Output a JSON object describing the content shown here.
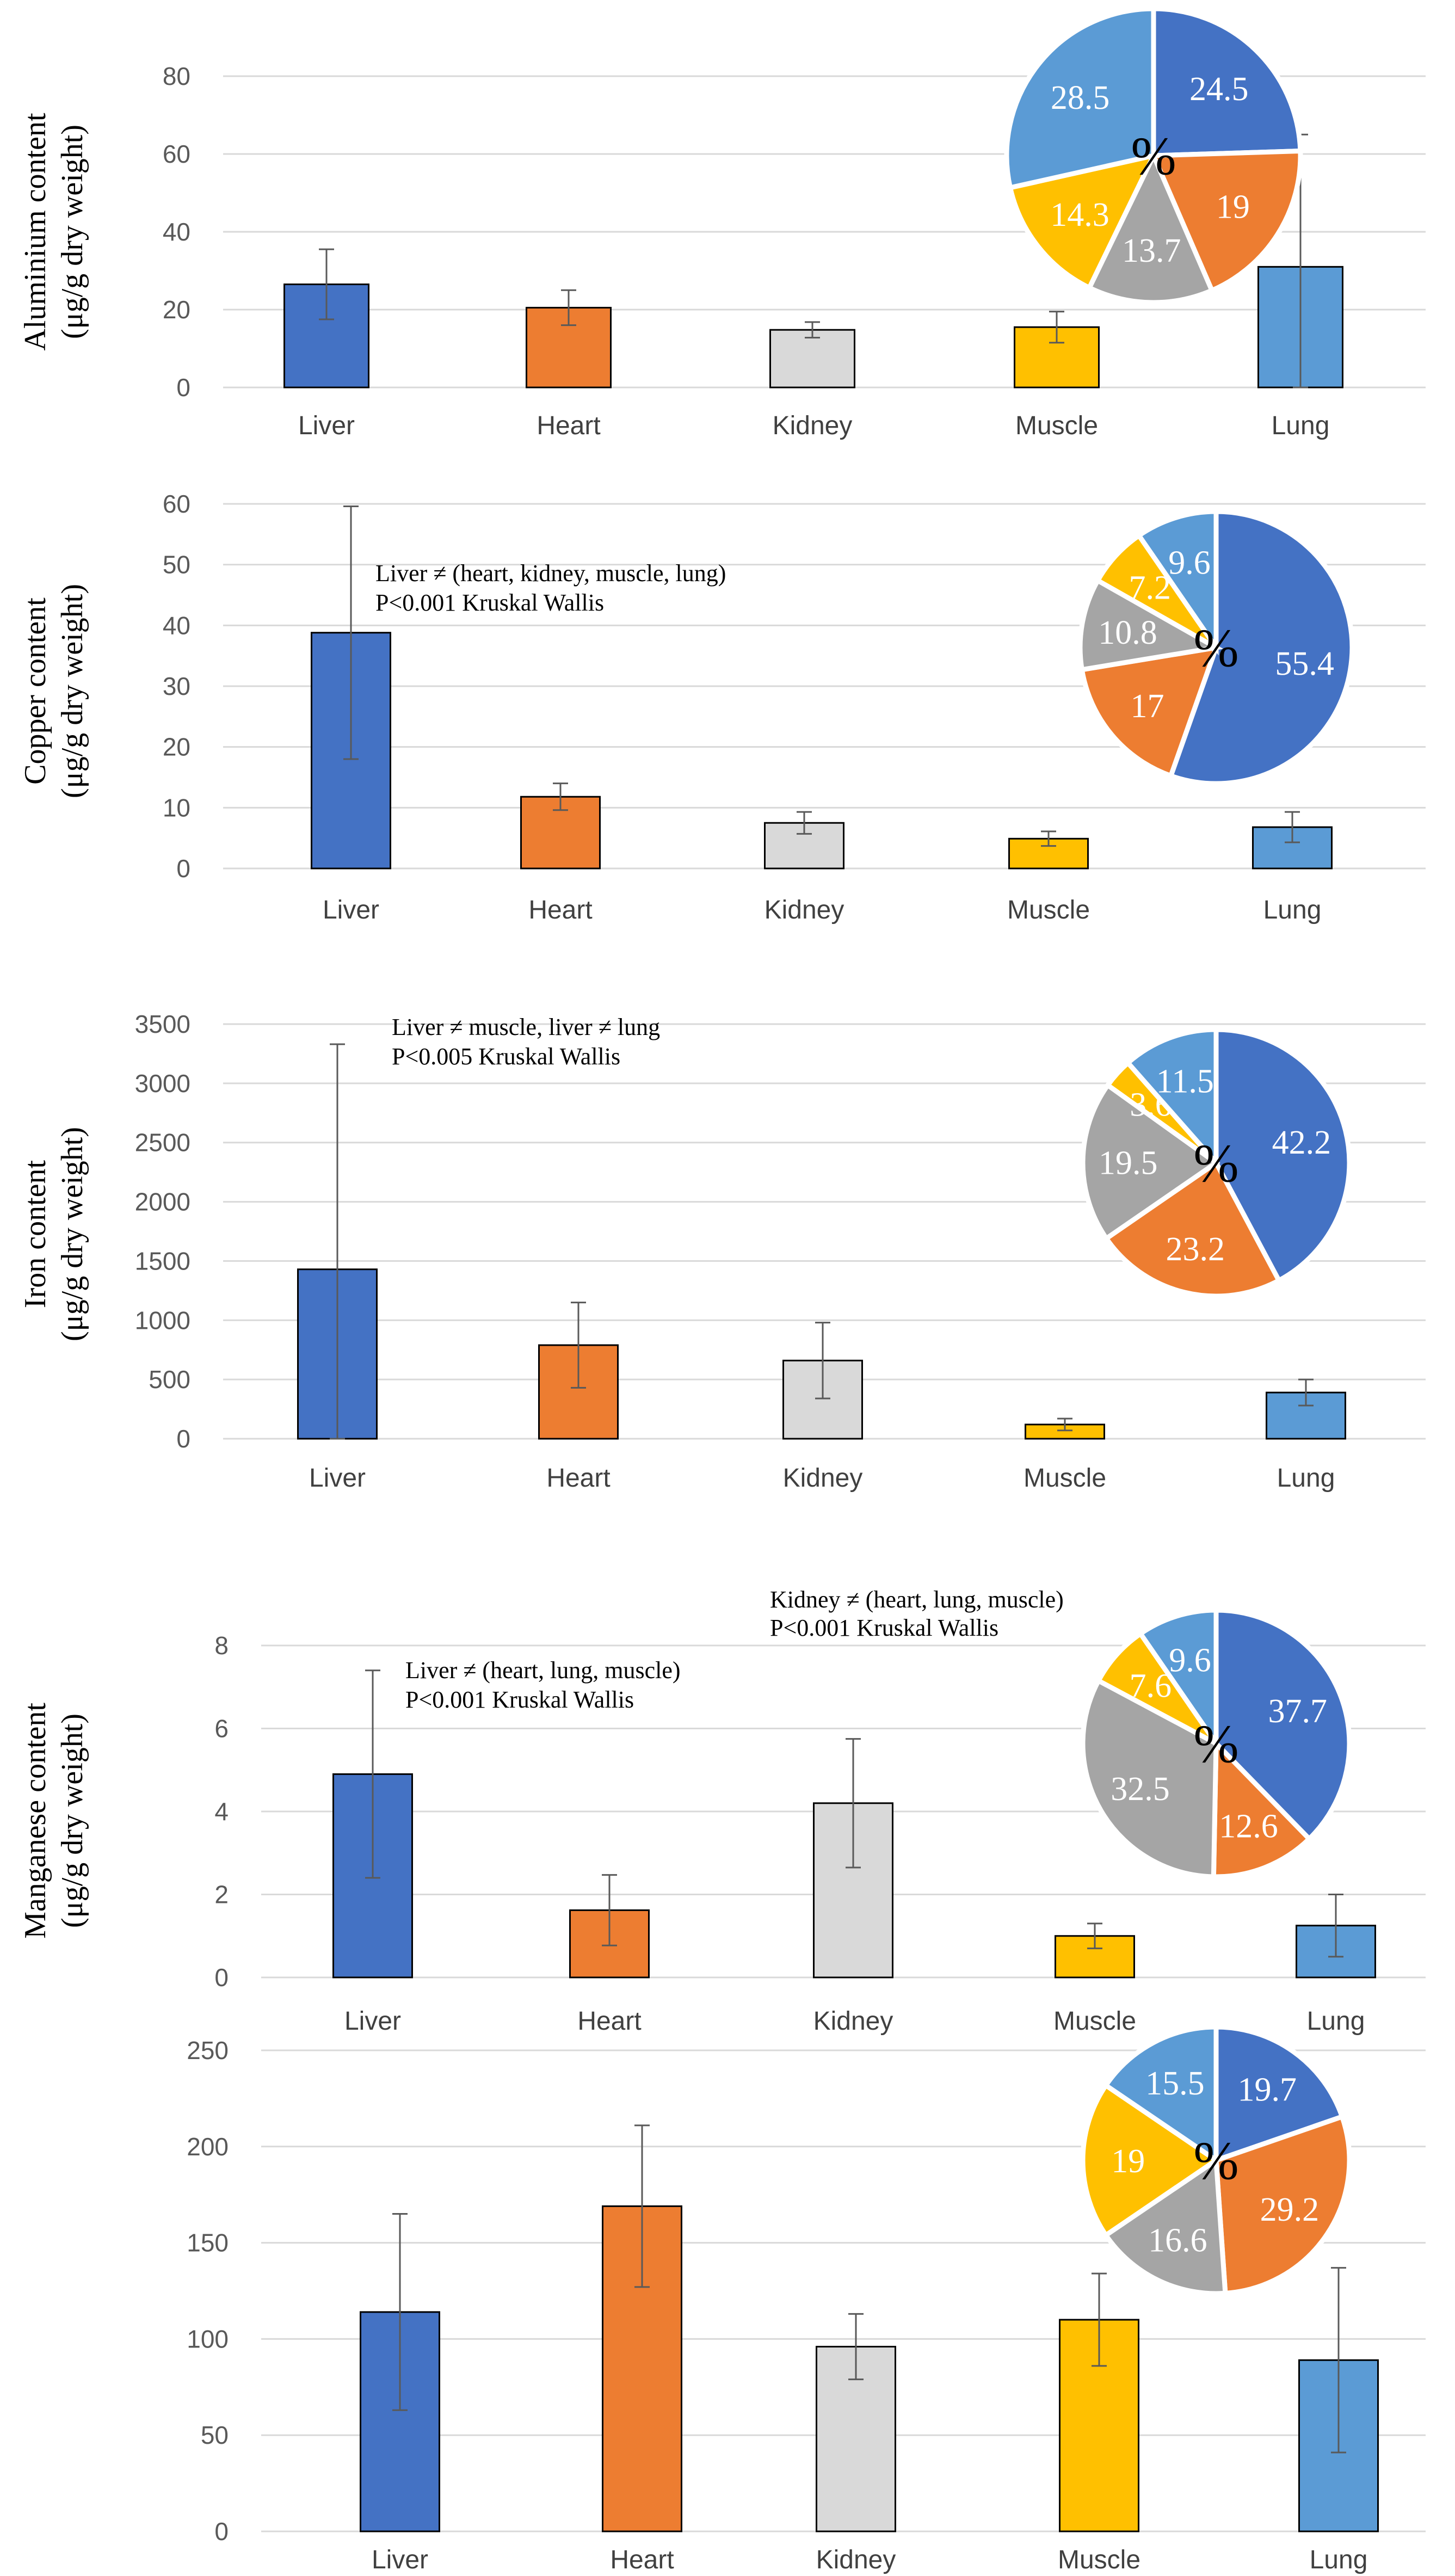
{
  "chart_data": [
    {
      "type": "bar",
      "title": "",
      "xlabel": "",
      "ylabel": [
        "Aluminium content",
        "(μg/g dry weight)"
      ],
      "categories": [
        "Liver",
        "Heart",
        "Kidney",
        "Muscle",
        "Lung"
      ],
      "values": [
        26.5,
        20.5,
        14.8,
        15.5,
        31.0
      ],
      "errors": [
        9.0,
        4.5,
        2.0,
        4.0,
        34.0
      ],
      "ylim": [
        0,
        80
      ],
      "yticks": [
        "0",
        "20",
        "40",
        "60",
        "80"
      ],
      "colors": [
        "#4472C4",
        "#ED7D31",
        "#D9D9D9",
        "#FFC000",
        "#5B9BD5"
      ],
      "annotations": [],
      "pie": {
        "center_label": "%",
        "slices": [
          {
            "label": "Liver",
            "value": 24.5,
            "text": "24.5",
            "color": "#4472C4"
          },
          {
            "label": "Heart",
            "value": 19,
            "text": "19",
            "color": "#ED7D31"
          },
          {
            "label": "Kidney",
            "value": 13.7,
            "text": "13.7",
            "color": "#A5A5A5"
          },
          {
            "label": "Muscle",
            "value": 14.3,
            "text": "14.3",
            "color": "#FFC000"
          },
          {
            "label": "Lung",
            "value": 28.5,
            "text": "28.5",
            "color": "#5B9BD5"
          }
        ]
      }
    },
    {
      "type": "bar",
      "title": "",
      "xlabel": "",
      "ylabel": [
        "Copper content",
        "(μg/g dry weight)"
      ],
      "categories": [
        "Liver",
        "Heart",
        "Kidney",
        "Muscle",
        "Lung"
      ],
      "values": [
        38.8,
        11.8,
        7.5,
        4.9,
        6.8
      ],
      "errors": [
        20.8,
        2.2,
        1.8,
        1.2,
        2.5
      ],
      "ylim": [
        0,
        60
      ],
      "yticks": [
        "0",
        "10",
        "20",
        "30",
        "40",
        "50",
        "60"
      ],
      "colors": [
        "#4472C4",
        "#ED7D31",
        "#D9D9D9",
        "#FFC000",
        "#5B9BD5"
      ],
      "annotations": [
        "Liver ≠ (heart, kidney, muscle, lung)",
        "P<0.001 Kruskal Wallis"
      ],
      "pie": {
        "center_label": "%",
        "slices": [
          {
            "label": "Liver",
            "value": 55.4,
            "text": "55.4",
            "color": "#4472C4"
          },
          {
            "label": "Heart",
            "value": 17,
            "text": "17",
            "color": "#ED7D31"
          },
          {
            "label": "Kidney",
            "value": 10.8,
            "text": "10.8",
            "color": "#A5A5A5"
          },
          {
            "label": "Muscle",
            "value": 7.2,
            "text": "7.2",
            "color": "#FFC000"
          },
          {
            "label": "Lung",
            "value": 9.6,
            "text": "9.6",
            "color": "#5B9BD5"
          }
        ]
      }
    },
    {
      "type": "bar",
      "title": "",
      "xlabel": "",
      "ylabel": [
        "Iron content",
        "(μg/g dry weight)"
      ],
      "categories": [
        "Liver",
        "Heart",
        "Kidney",
        "Muscle",
        "Lung"
      ],
      "values": [
        1430,
        790,
        660,
        120,
        390
      ],
      "errors": [
        1900,
        360,
        320,
        50,
        110
      ],
      "ylim": [
        0,
        3500
      ],
      "yticks": [
        "0",
        "500",
        "1000",
        "1500",
        "2000",
        "2500",
        "3000",
        "3500"
      ],
      "colors": [
        "#4472C4",
        "#ED7D31",
        "#D9D9D9",
        "#FFC000",
        "#5B9BD5"
      ],
      "annotations": [
        "Liver ≠ muscle, liver ≠ lung",
        "P<0.005 Kruskal Wallis"
      ],
      "pie": {
        "center_label": "%",
        "slices": [
          {
            "label": "Liver",
            "value": 42.2,
            "text": "42.2",
            "color": "#4472C4"
          },
          {
            "label": "Heart",
            "value": 23.2,
            "text": "23.2",
            "color": "#ED7D31"
          },
          {
            "label": "Kidney",
            "value": 19.5,
            "text": "19.5",
            "color": "#A5A5A5"
          },
          {
            "label": "Muscle",
            "value": 3.6,
            "text": "3.6",
            "color": "#FFC000"
          },
          {
            "label": "Lung",
            "value": 11.5,
            "text": "11.5",
            "color": "#5B9BD5"
          }
        ]
      }
    },
    {
      "type": "bar",
      "title": "",
      "xlabel": "",
      "ylabel": [
        "Manganese content",
        "(μg/g dry weight)"
      ],
      "categories": [
        "Liver",
        "Heart",
        "Kidney",
        "Muscle",
        "Lung"
      ],
      "values": [
        4.9,
        1.62,
        4.2,
        1.0,
        1.25
      ],
      "errors": [
        2.5,
        0.85,
        1.55,
        0.3,
        0.75
      ],
      "ylim": [
        0,
        8
      ],
      "yticks": [
        "0",
        "2",
        "4",
        "6",
        "8"
      ],
      "colors": [
        "#4472C4",
        "#ED7D31",
        "#D9D9D9",
        "#FFC000",
        "#5B9BD5"
      ],
      "annotations": [
        "Liver ≠ (heart, lung, muscle)",
        "P<0.001 Kruskal Wallis",
        "Kidney ≠ (heart, lung, muscle)",
        "P<0.001 Kruskal Wallis"
      ],
      "pie": {
        "center_label": "%",
        "slices": [
          {
            "label": "Liver",
            "value": 37.7,
            "text": "37.7",
            "color": "#4472C4"
          },
          {
            "label": "Heart",
            "value": 12.6,
            "text": "12.6",
            "color": "#ED7D31"
          },
          {
            "label": "Kidney",
            "value": 32.5,
            "text": "32.5",
            "color": "#A5A5A5"
          },
          {
            "label": "Muscle",
            "value": 7.6,
            "text": "7.6",
            "color": "#FFC000"
          },
          {
            "label": "Lung",
            "value": 9.6,
            "text": "9.6",
            "color": "#5B9BD5"
          }
        ]
      }
    },
    {
      "type": "bar",
      "title": "",
      "xlabel": "",
      "ylabel": [],
      "categories": [
        "Liver",
        "Heart",
        "Kidney",
        "Muscle",
        "Lung"
      ],
      "values": [
        114,
        169,
        96,
        110,
        89
      ],
      "errors": [
        51,
        42,
        17,
        24,
        48
      ],
      "ylim": [
        0,
        250
      ],
      "yticks": [
        "0",
        "50",
        "100",
        "150",
        "200",
        "250"
      ],
      "colors": [
        "#4472C4",
        "#ED7D31",
        "#D9D9D9",
        "#FFC000",
        "#5B9BD5"
      ],
      "annotations": [],
      "pie": {
        "center_label": "%",
        "slices": [
          {
            "label": "Liver",
            "value": 19.7,
            "text": "19.7",
            "color": "#4472C4"
          },
          {
            "label": "Heart",
            "value": 29.2,
            "text": "29.2",
            "color": "#ED7D31"
          },
          {
            "label": "Kidney",
            "value": 16.6,
            "text": "16.6",
            "color": "#A5A5A5"
          },
          {
            "label": "Muscle",
            "value": 19,
            "text": "19",
            "color": "#FFC000"
          },
          {
            "label": "Lung",
            "value": 15.5,
            "text": "15.5",
            "color": "#5B9BD5"
          }
        ]
      }
    }
  ]
}
